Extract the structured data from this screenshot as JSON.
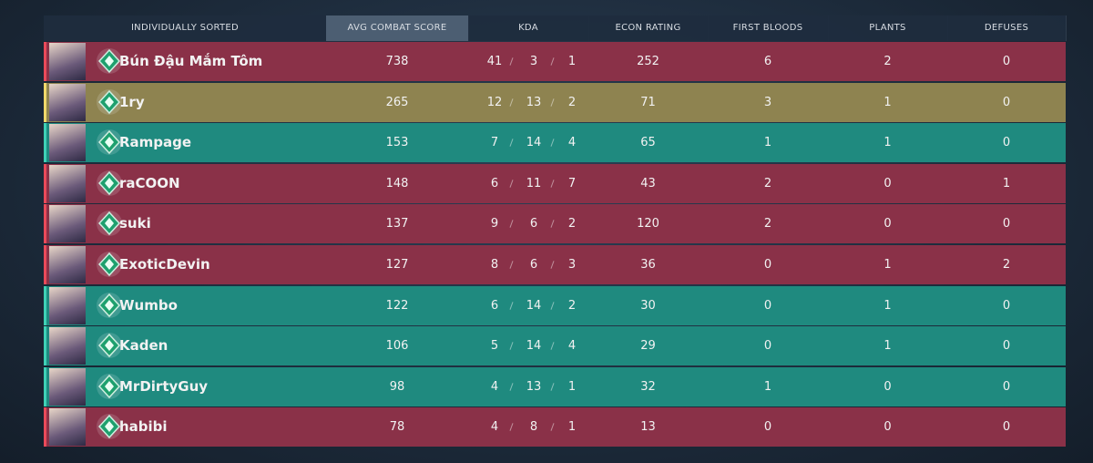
{
  "header": {
    "columns": [
      "INDIVIDUALLY SORTED",
      "AVG COMBAT SCORE",
      "KDA",
      "ECON RATING",
      "FIRST BLOODS",
      "PLANTS",
      "DEFUSES"
    ]
  },
  "rows": [
    {
      "name": "Bún Đậu Mắm Tôm",
      "color": "#8a3148",
      "acs": 738,
      "kills": 41,
      "deaths": 3,
      "assists": 1,
      "econ": 252,
      "first_bloods": 6,
      "plants": 2,
      "defuses": 0
    },
    {
      "name": "1ry",
      "color": "#8e8350",
      "acs": 265,
      "kills": 12,
      "deaths": 13,
      "assists": 2,
      "econ": 71,
      "first_bloods": 3,
      "plants": 1,
      "defuses": 0
    },
    {
      "name": "Rampage",
      "color": "#1f8a7f",
      "acs": 153,
      "kills": 7,
      "deaths": 14,
      "assists": 4,
      "econ": 65,
      "first_bloods": 1,
      "plants": 1,
      "defuses": 0
    },
    {
      "name": "raCOON",
      "color": "#8a3148",
      "acs": 148,
      "kills": 6,
      "deaths": 11,
      "assists": 7,
      "econ": 43,
      "first_bloods": 2,
      "plants": 0,
      "defuses": 1
    },
    {
      "name": "suki",
      "color": "#8a3148",
      "acs": 137,
      "kills": 9,
      "deaths": 6,
      "assists": 2,
      "econ": 120,
      "first_bloods": 2,
      "plants": 0,
      "defuses": 0
    },
    {
      "name": "ExoticDevin",
      "color": "#8a3148",
      "acs": 127,
      "kills": 8,
      "deaths": 6,
      "assists": 3,
      "econ": 36,
      "first_bloods": 0,
      "plants": 1,
      "defuses": 2
    },
    {
      "name": "Wumbo",
      "color": "#1f8a7f",
      "acs": 122,
      "kills": 6,
      "deaths": 14,
      "assists": 2,
      "econ": 30,
      "first_bloods": 0,
      "plants": 1,
      "defuses": 0
    },
    {
      "name": "Kaden",
      "color": "#1f8a7f",
      "acs": 106,
      "kills": 5,
      "deaths": 14,
      "assists": 4,
      "econ": 29,
      "first_bloods": 0,
      "plants": 1,
      "defuses": 0
    },
    {
      "name": "MrDirtyGuy",
      "color": "#1f8a7f",
      "acs": 98,
      "kills": 4,
      "deaths": 13,
      "assists": 1,
      "econ": 32,
      "first_bloods": 1,
      "plants": 0,
      "defuses": 0
    },
    {
      "name": "habibi",
      "color": "#8a3148",
      "acs": 78,
      "kills": 4,
      "deaths": 8,
      "assists": 1,
      "econ": 13,
      "first_bloods": 0,
      "plants": 0,
      "defuses": 0
    }
  ]
}
